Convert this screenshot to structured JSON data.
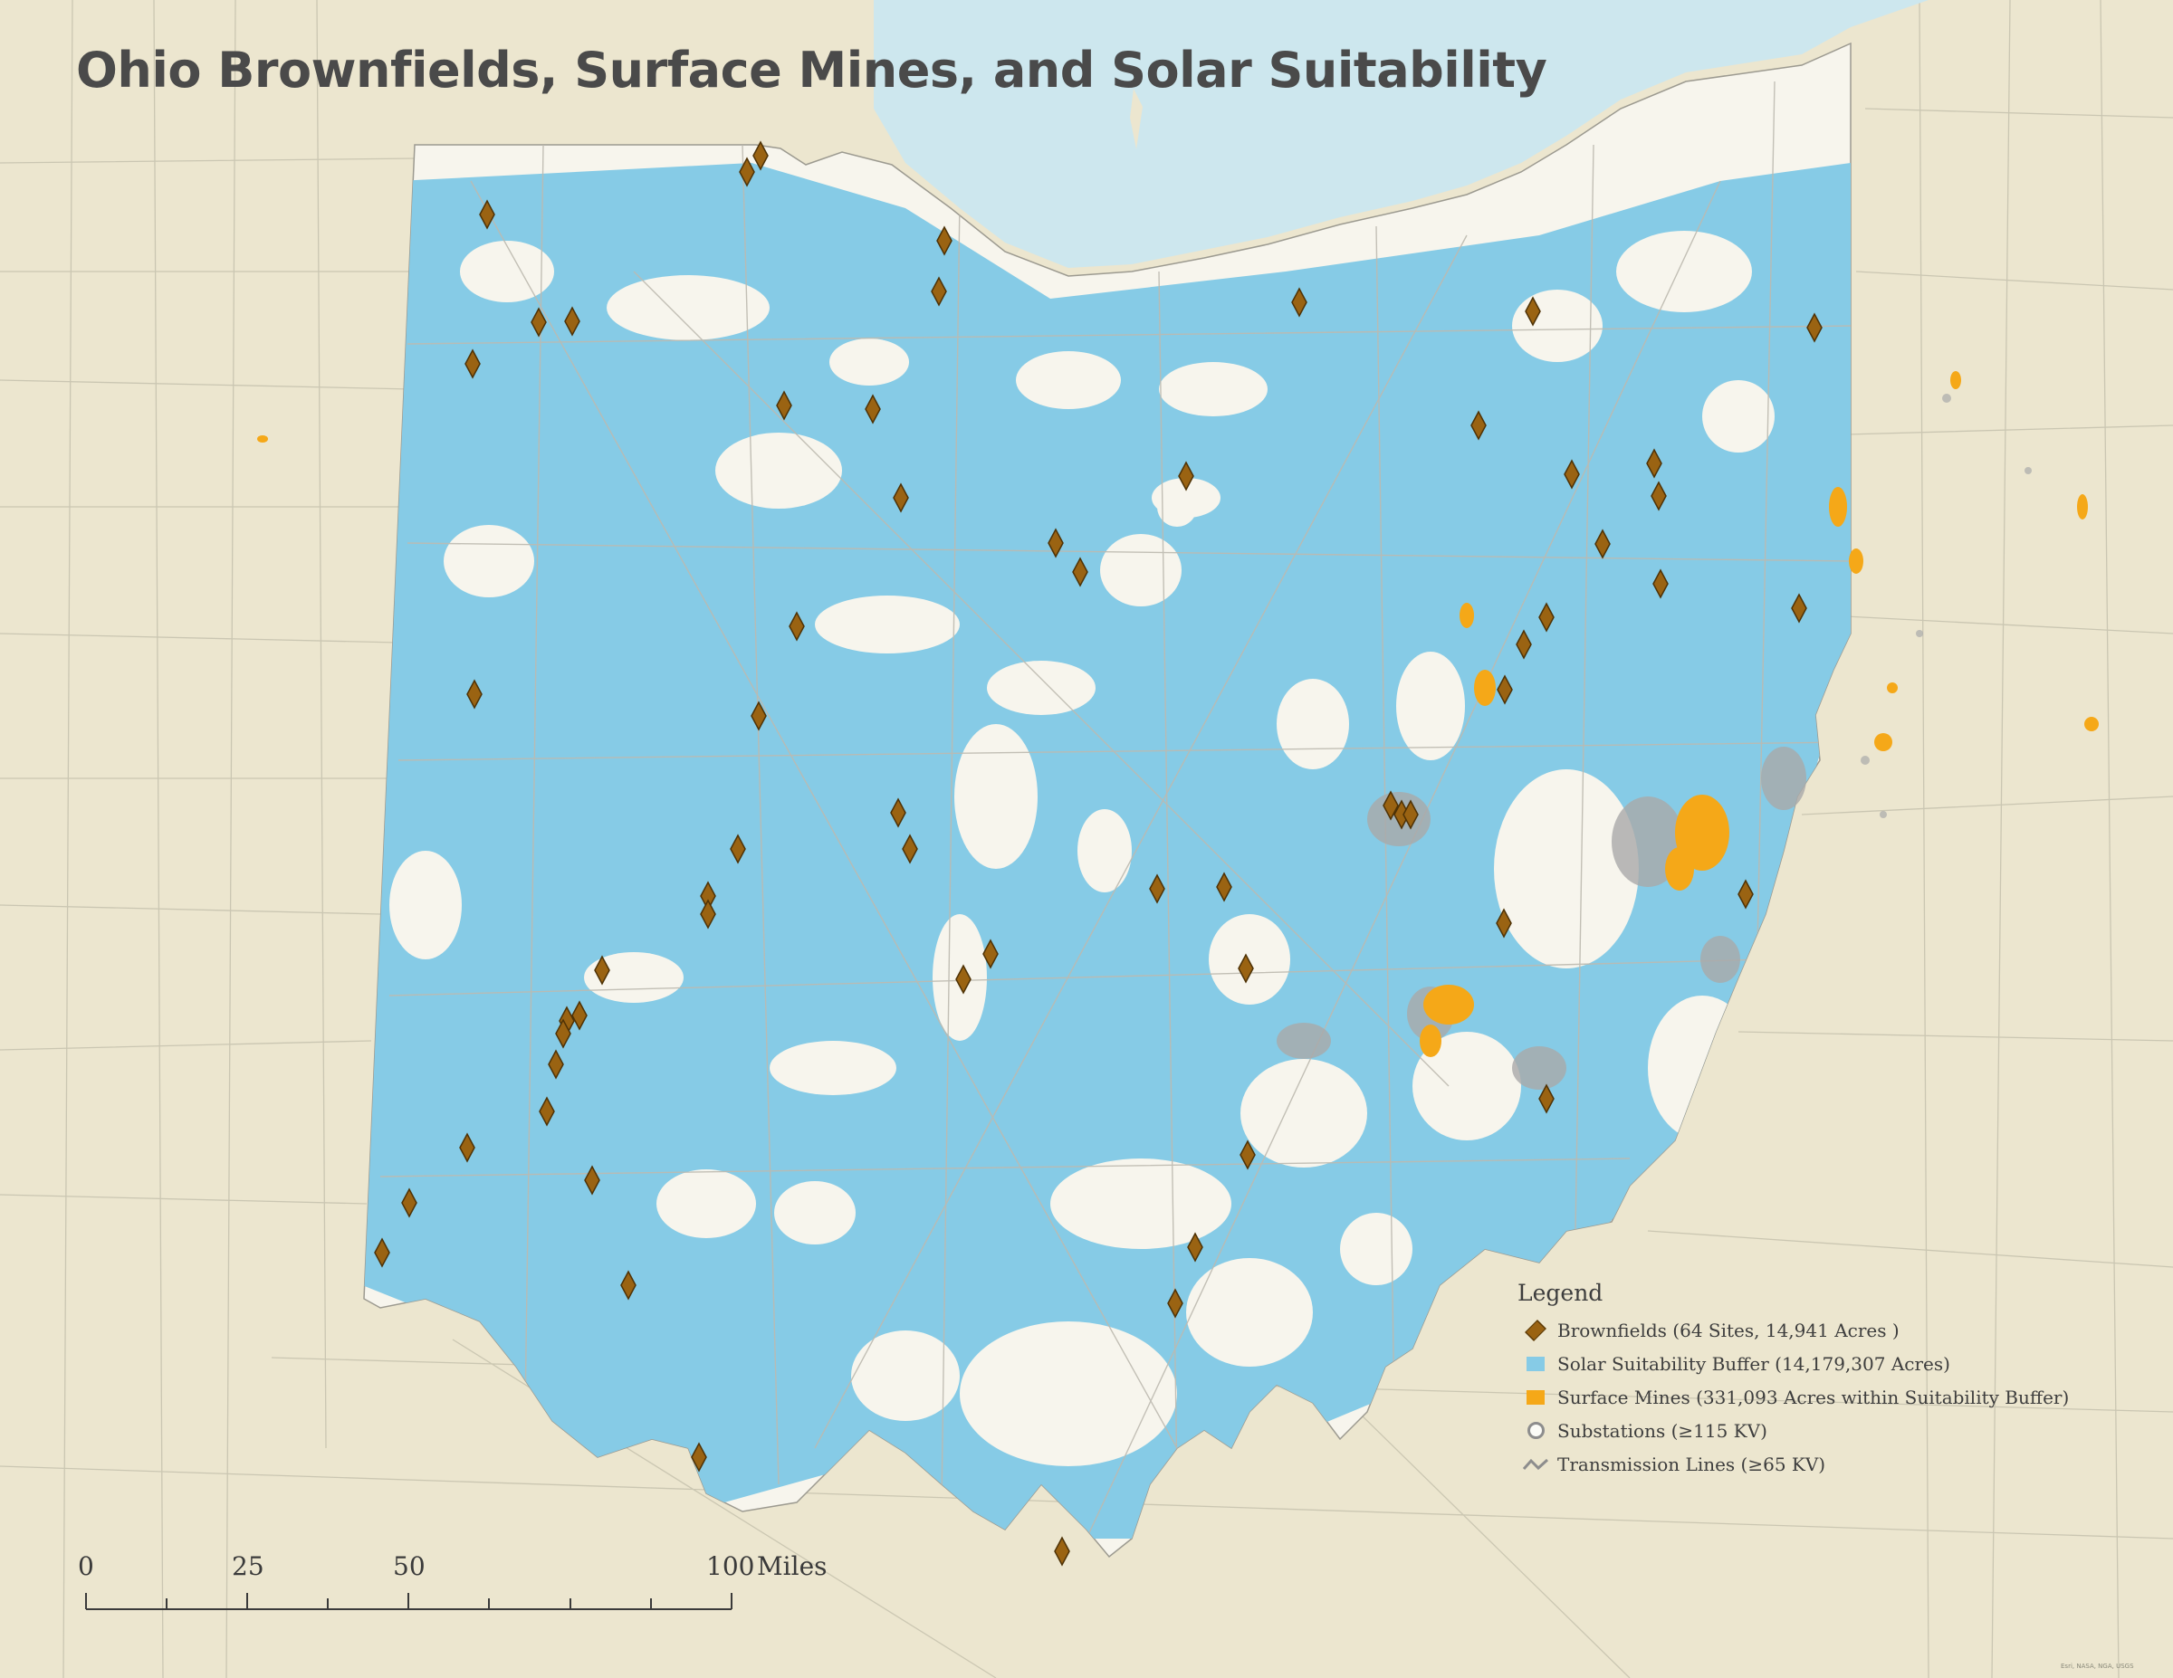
{
  "title": "Ohio Brownfields, Surface Mines, and Solar Suitability",
  "legend": {
    "title": "Legend",
    "items": [
      {
        "symbol": "brownfield-diamond-icon",
        "label": "Brownfields (64 Sites, 14,941 Acres )"
      },
      {
        "symbol": "solar-buffer-swatch",
        "label": "Solar Suitability Buffer (14,179,307 Acres)"
      },
      {
        "symbol": "surface-mine-swatch",
        "label": "Surface Mines (331,093 Acres within Suitability Buffer)"
      },
      {
        "symbol": "substation-circle-icon",
        "label": "Substations (≥115 KV)"
      },
      {
        "symbol": "transmission-line-icon",
        "label": "Transmission Lines (≥65 KV)"
      }
    ]
  },
  "scale_bar": {
    "ticks": [
      "0",
      "25",
      "50",
      "100"
    ],
    "unit": "Miles"
  },
  "credit": "Esri, NASA, NGA, USGS",
  "colors": {
    "background_land": "#ece6cf",
    "ohio_land": "#f7f5ed",
    "lake": "#cde7ee",
    "solar_buffer": "#86cbe6",
    "surface_mine": "#f5a818",
    "brownfield": "#9a6312",
    "roads": "#b9b6ab",
    "title_text": "#4a4a4a"
  }
}
